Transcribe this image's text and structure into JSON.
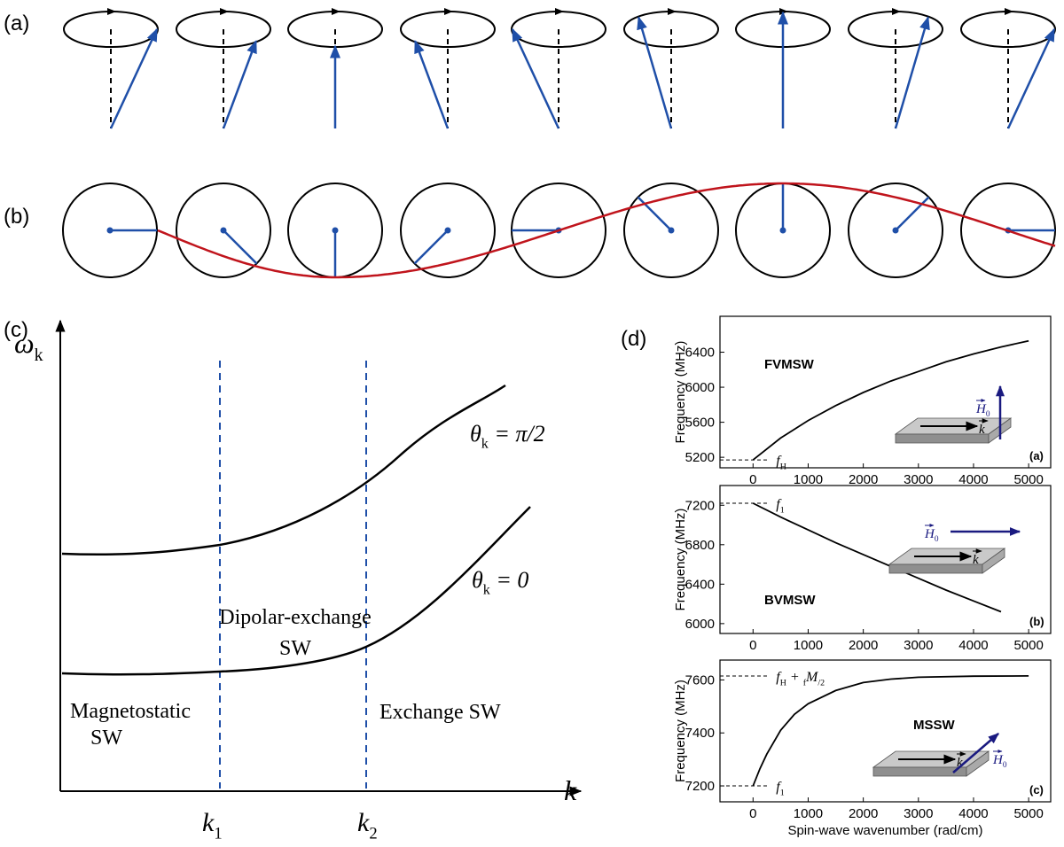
{
  "panel_labels": [
    "(a)",
    "(b)",
    "(c)",
    "(d)"
  ],
  "dispersion_schematic": {
    "y_label": [
      "ω",
      "k"
    ],
    "x_label": "k",
    "boundaries": [
      [
        "k",
        "1"
      ],
      [
        "k",
        "2"
      ]
    ],
    "curves": [
      [
        "θ",
        "k",
        " = π/2"
      ],
      [
        "θ",
        "k",
        " = 0"
      ]
    ],
    "regions": [
      [
        "Magnetostatic",
        "SW"
      ],
      [
        "Dipolar-exchange",
        "SW"
      ],
      [
        "Exchange SW"
      ]
    ]
  },
  "chart_data": [
    {
      "type": "line",
      "panel_label": "(a)",
      "mode_label": "FVMSW",
      "y_label": "Frequency (MHz)",
      "color": "#000000",
      "x": [
        0,
        500,
        1000,
        1500,
        2000,
        2500,
        3000,
        3500,
        4000,
        4500,
        5000
      ],
      "values": [
        5170,
        5420,
        5620,
        5790,
        5940,
        6070,
        6180,
        6290,
        6380,
        6460,
        6530
      ],
      "xlim": [
        -600,
        5400
      ],
      "ylim": [
        5080,
        6810
      ],
      "xticks": [
        0,
        1000,
        2000,
        3000,
        4000,
        5000
      ],
      "yticks": [
        5200,
        5600,
        6000,
        6400
      ],
      "reference_lines": [
        {
          "value": 5170,
          "label": [
            "f",
            "H"
          ]
        }
      ],
      "inset": {
        "field": [
          "H",
          "0"
        ],
        "wavevector": "k"
      }
    },
    {
      "type": "line",
      "panel_label": "(b)",
      "mode_label": "BVMSW",
      "y_label": "Frequency (MHz)",
      "color": "#000000",
      "x": [
        0,
        500,
        1000,
        1500,
        2000,
        2500,
        3000,
        3500,
        4000,
        4500
      ],
      "values": [
        7220,
        7080,
        6950,
        6820,
        6700,
        6580,
        6460,
        6340,
        6230,
        6120
      ],
      "xlim": [
        -600,
        5400
      ],
      "ylim": [
        5900,
        7400
      ],
      "xticks": [
        0,
        1000,
        2000,
        3000,
        4000,
        5000
      ],
      "yticks": [
        6000,
        6400,
        6800,
        7200
      ],
      "reference_lines": [
        {
          "value": 7220,
          "label": [
            "f",
            "1"
          ]
        }
      ],
      "inset": {
        "field": [
          "H",
          "0"
        ],
        "wavevector": "k"
      }
    },
    {
      "type": "line",
      "panel_label": "(c)",
      "mode_label": "MSSW",
      "y_label": "Frequency (MHz)",
      "x_label": "Spin-wave wavenumber (rad/cm)",
      "color": "#000000",
      "x": [
        0,
        125,
        250,
        500,
        750,
        1000,
        1500,
        2000,
        2500,
        3000,
        4000,
        5000
      ],
      "values": [
        7200,
        7265,
        7320,
        7410,
        7470,
        7510,
        7560,
        7590,
        7603,
        7610,
        7614,
        7615
      ],
      "xlim": [
        -600,
        5400
      ],
      "ylim": [
        7140,
        7675
      ],
      "xticks": [
        0,
        1000,
        2000,
        3000,
        4000,
        5000
      ],
      "yticks": [
        7200,
        7400,
        7600
      ],
      "reference_lines": [
        {
          "value": 7615,
          "label": [
            "f",
            "H",
            " + ",
            "f",
            "M",
            "/2"
          ]
        },
        {
          "value": 7200,
          "label": [
            "f",
            "1"
          ]
        }
      ],
      "inset": {
        "field": [
          "H",
          "0"
        ],
        "wavevector": "k"
      }
    }
  ]
}
